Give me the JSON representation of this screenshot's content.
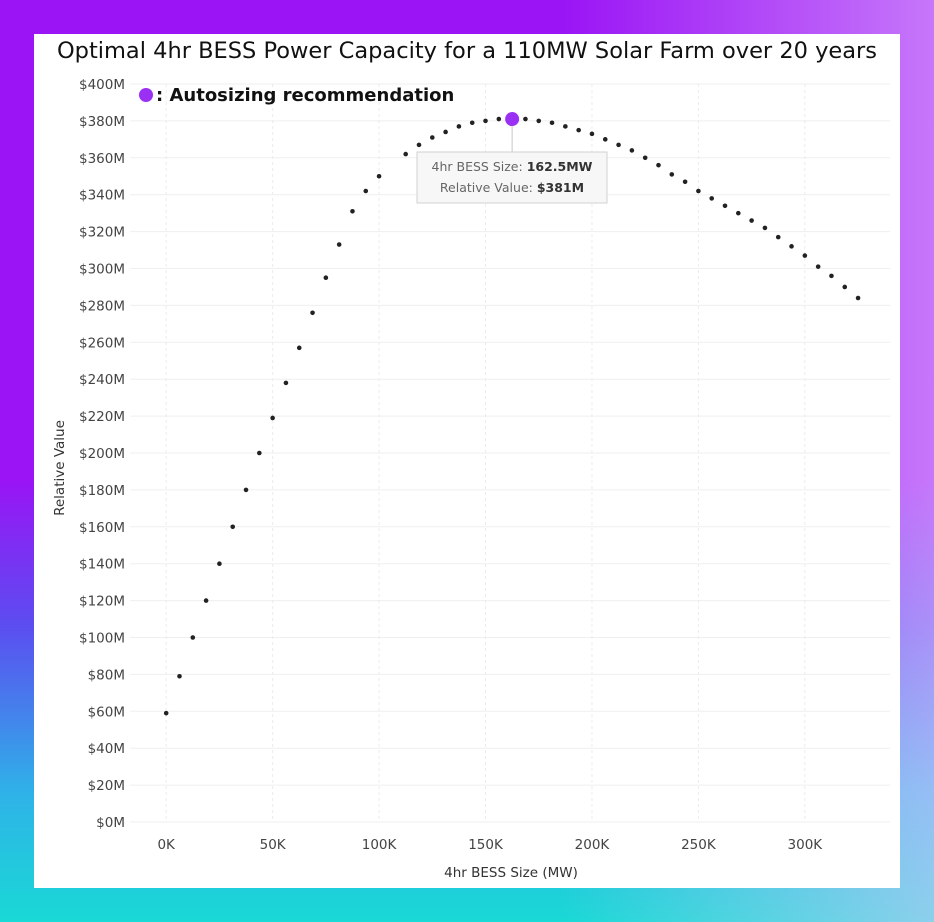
{
  "chart_data": {
    "type": "scatter",
    "title": "Optimal 4hr BESS Power Capacity for a 110MW Solar Farm over 20 years",
    "xlabel": "4hr BESS Size (MW)",
    "ylabel": "Relative Value",
    "xlim": [
      -17000,
      340000
    ],
    "ylim": [
      0,
      400
    ],
    "x_ticks": [
      {
        "value": 0,
        "label": "0K"
      },
      {
        "value": 50000,
        "label": "50K"
      },
      {
        "value": 100000,
        "label": "100K"
      },
      {
        "value": 150000,
        "label": "150K"
      },
      {
        "value": 200000,
        "label": "200K"
      },
      {
        "value": 250000,
        "label": "250K"
      },
      {
        "value": 300000,
        "label": "300K"
      }
    ],
    "y_ticks": [
      {
        "value": 0,
        "label": "$0M"
      },
      {
        "value": 20,
        "label": "$20M"
      },
      {
        "value": 40,
        "label": "$40M"
      },
      {
        "value": 60,
        "label": "$60M"
      },
      {
        "value": 80,
        "label": "$80M"
      },
      {
        "value": 100,
        "label": "$100M"
      },
      {
        "value": 120,
        "label": "$120M"
      },
      {
        "value": 140,
        "label": "$140M"
      },
      {
        "value": 160,
        "label": "$160M"
      },
      {
        "value": 180,
        "label": "$180M"
      },
      {
        "value": 200,
        "label": "$200M"
      },
      {
        "value": 220,
        "label": "$220M"
      },
      {
        "value": 240,
        "label": "$240M"
      },
      {
        "value": 260,
        "label": "$260M"
      },
      {
        "value": 280,
        "label": "$280M"
      },
      {
        "value": 300,
        "label": "$300M"
      },
      {
        "value": 320,
        "label": "$320M"
      },
      {
        "value": 340,
        "label": "$340M"
      },
      {
        "value": 360,
        "label": "$360M"
      },
      {
        "value": 380,
        "label": "$380M"
      },
      {
        "value": 400,
        "label": "$400M"
      }
    ],
    "grid": true,
    "legend": {
      "position": "top-left",
      "label": ": Autosizing recommendation",
      "color": "#9b30f5"
    },
    "points": {
      "x": [
        0,
        6250,
        12500,
        18750,
        25000,
        31250,
        37500,
        43750,
        50000,
        56250,
        62500,
        68750,
        75000,
        81250,
        87500,
        93750,
        100000,
        112500,
        118750,
        125000,
        131250,
        137500,
        143750,
        150000,
        156250,
        168750,
        175000,
        181250,
        187500,
        193750,
        200000,
        206250,
        212500,
        218750,
        225000,
        231250,
        237500,
        243750,
        250000,
        256250,
        262500,
        268750,
        275000,
        281250,
        287500,
        293750,
        300000,
        306250,
        312500,
        318750,
        325000
      ],
      "y": [
        59,
        79,
        100,
        120,
        140,
        160,
        180,
        200,
        219,
        238,
        257,
        276,
        295,
        313,
        331,
        342,
        350,
        362,
        367,
        371,
        374,
        377,
        379,
        380,
        381,
        381,
        380,
        379,
        377,
        375,
        373,
        370,
        367,
        364,
        360,
        356,
        351,
        347,
        342,
        338,
        334,
        330,
        326,
        322,
        317,
        312,
        307,
        301,
        296,
        290,
        284
      ],
      "color": "#222222"
    },
    "highlight": {
      "x": 162500,
      "y": 381,
      "color": "#9b30f5"
    },
    "tooltip": {
      "size_label": "4hr BESS Size:",
      "size_value": "162.5MW",
      "value_label": "Relative Value:",
      "value_value": "$381M"
    }
  }
}
